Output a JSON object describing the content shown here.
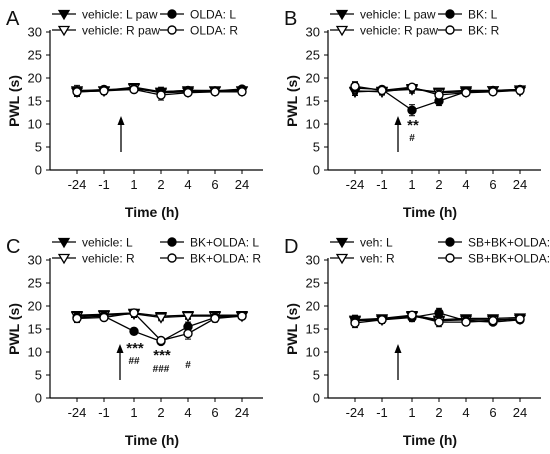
{
  "chart_data": [
    {
      "panel": "A",
      "type": "line",
      "ylabel": "PWL (s)",
      "xlabel": "Time (h)",
      "x": [
        "-24",
        "-1",
        "1",
        "2",
        "4",
        "6",
        "24"
      ],
      "ylim": [
        0,
        30
      ],
      "yticks": [
        0,
        5,
        10,
        15,
        20,
        25,
        30
      ],
      "series": [
        {
          "name": "vehicle: L paw",
          "marker": "triangle-down",
          "fill": "filled",
          "values": [
            17.3,
            17.3,
            18.0,
            17.0,
            17.3,
            17.3,
            17.2
          ],
          "err": [
            0.8,
            0.7,
            0.8,
            0.7,
            0.6,
            0.6,
            0.7
          ]
        },
        {
          "name": "vehicle: R paw",
          "marker": "triangle-down",
          "fill": "open",
          "values": [
            17.0,
            17.2,
            17.8,
            16.8,
            17.0,
            17.2,
            17.3
          ],
          "err": [
            0.9,
            0.7,
            0.8,
            0.8,
            0.6,
            0.6,
            0.7
          ]
        },
        {
          "name": "OLDA: L",
          "marker": "circle",
          "fill": "filled",
          "values": [
            17.2,
            17.5,
            17.6,
            17.0,
            17.3,
            17.2,
            17.6
          ],
          "err": [
            1.2,
            0.7,
            0.7,
            1.0,
            0.6,
            0.6,
            0.6
          ]
        },
        {
          "name": "OLDA: R",
          "marker": "circle",
          "fill": "open",
          "values": [
            17.0,
            17.2,
            17.5,
            16.3,
            16.8,
            17.0,
            17.0
          ],
          "err": [
            1.0,
            0.8,
            0.7,
            1.1,
            0.7,
            0.6,
            0.6
          ]
        }
      ],
      "arrow_at": "1",
      "annotations": []
    },
    {
      "panel": "B",
      "type": "line",
      "ylabel": "PWL (s)",
      "xlabel": "Time (h)",
      "x": [
        "-24",
        "-1",
        "1",
        "2",
        "4",
        "6",
        "24"
      ],
      "ylim": [
        0,
        30
      ],
      "yticks": [
        0,
        5,
        10,
        15,
        20,
        25,
        30
      ],
      "series": [
        {
          "name": "vehicle: L paw",
          "marker": "triangle-down",
          "fill": "filled",
          "values": [
            17.0,
            17.2,
            17.5,
            17.0,
            17.3,
            17.3,
            17.5
          ],
          "err": [
            0.8,
            0.7,
            0.8,
            0.7,
            0.6,
            0.6,
            0.6
          ]
        },
        {
          "name": "vehicle: R paw",
          "marker": "triangle-down",
          "fill": "open",
          "values": [
            17.2,
            17.0,
            17.8,
            16.8,
            17.0,
            17.3,
            17.2
          ],
          "err": [
            0.9,
            0.7,
            0.8,
            0.7,
            0.6,
            0.6,
            0.7
          ]
        },
        {
          "name": "BK: L",
          "marker": "circle",
          "fill": "filled",
          "values": [
            17.8,
            17.5,
            13.0,
            15.0,
            17.0,
            17.3,
            17.5
          ],
          "err": [
            1.2,
            0.7,
            1.2,
            1.0,
            0.8,
            0.7,
            0.7
          ]
        },
        {
          "name": "BK: R",
          "marker": "circle",
          "fill": "open",
          "values": [
            18.2,
            17.3,
            18.0,
            16.3,
            16.8,
            17.0,
            17.3
          ],
          "err": [
            1.0,
            0.8,
            0.7,
            1.0,
            0.7,
            0.6,
            0.6
          ]
        }
      ],
      "arrow_at": "-1",
      "annotations": [
        {
          "text": "**",
          "at": "1"
        },
        {
          "text": "#",
          "at": "1"
        }
      ]
    },
    {
      "panel": "C",
      "type": "line",
      "ylabel": "PWL (s)",
      "xlabel": "Time (h)",
      "x": [
        "-24",
        "-1",
        "1",
        "2",
        "4",
        "6",
        "24"
      ],
      "ylim": [
        0,
        30
      ],
      "yticks": [
        0,
        5,
        10,
        15,
        20,
        25,
        30
      ],
      "series": [
        {
          "name": "vehicle: L",
          "marker": "triangle-down",
          "fill": "filled",
          "values": [
            18.0,
            18.2,
            18.5,
            17.8,
            18.0,
            18.0,
            18.0
          ],
          "err": [
            0.8,
            0.7,
            0.8,
            0.7,
            0.7,
            0.6,
            0.6
          ]
        },
        {
          "name": "vehicle: R",
          "marker": "triangle-down",
          "fill": "open",
          "values": [
            17.8,
            18.0,
            18.3,
            17.5,
            17.8,
            17.8,
            17.8
          ],
          "err": [
            0.8,
            0.7,
            0.8,
            0.7,
            0.7,
            0.6,
            0.6
          ]
        },
        {
          "name": "BK+OLDA: L",
          "marker": "circle",
          "fill": "filled",
          "values": [
            17.5,
            17.8,
            14.5,
            12.3,
            15.5,
            17.5,
            17.8
          ],
          "err": [
            0.9,
            0.7,
            0.7,
            0.6,
            1.0,
            0.8,
            0.7
          ]
        },
        {
          "name": "BK+OLDA: R",
          "marker": "circle",
          "fill": "open",
          "values": [
            17.3,
            17.5,
            18.5,
            12.5,
            14.0,
            17.3,
            17.8
          ],
          "err": [
            0.9,
            0.7,
            0.6,
            0.6,
            1.2,
            0.8,
            0.7
          ]
        }
      ],
      "arrow_at": "-1",
      "annotations": [
        {
          "text": "***",
          "at": "1"
        },
        {
          "text": "##",
          "at": "1"
        },
        {
          "text": "***",
          "at": "2"
        },
        {
          "text": "###",
          "at": "2"
        },
        {
          "text": "#",
          "at": "4"
        }
      ]
    },
    {
      "panel": "D",
      "type": "line",
      "ylabel": "PWL (s)",
      "xlabel": "Time (h)",
      "x": [
        "-24",
        "-1",
        "1",
        "2",
        "4",
        "6",
        "24"
      ],
      "ylim": [
        0,
        30
      ],
      "yticks": [
        0,
        5,
        10,
        15,
        20,
        25,
        30
      ],
      "series": [
        {
          "name": "veh: L",
          "marker": "triangle-down",
          "fill": "filled",
          "values": [
            17.0,
            17.3,
            18.0,
            17.0,
            17.3,
            17.3,
            17.5
          ],
          "err": [
            0.8,
            0.7,
            0.8,
            0.7,
            0.6,
            0.6,
            0.6
          ]
        },
        {
          "name": "veh: R",
          "marker": "triangle-down",
          "fill": "open",
          "values": [
            16.8,
            17.0,
            17.8,
            16.8,
            17.0,
            17.0,
            17.2
          ],
          "err": [
            0.8,
            0.7,
            0.8,
            0.7,
            0.6,
            0.6,
            0.7
          ]
        },
        {
          "name": "SB+BK+OLDA: L",
          "marker": "circle",
          "fill": "filled",
          "values": [
            17.0,
            17.0,
            17.5,
            18.5,
            16.8,
            16.5,
            17.0
          ],
          "err": [
            1.0,
            0.7,
            0.9,
            1.0,
            0.7,
            0.6,
            0.6
          ]
        },
        {
          "name": "SB+BK+OLDA: R",
          "marker": "circle",
          "fill": "open",
          "values": [
            16.3,
            17.0,
            18.0,
            16.5,
            16.5,
            16.8,
            17.2
          ],
          "err": [
            1.0,
            0.8,
            0.8,
            1.0,
            0.7,
            0.6,
            0.6
          ]
        }
      ],
      "arrow_at": "-1",
      "annotations": []
    }
  ]
}
